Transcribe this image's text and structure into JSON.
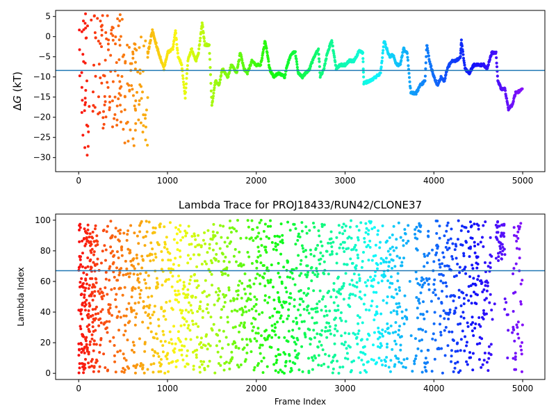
{
  "chart_data": [
    {
      "type": "scatter",
      "title": "",
      "xlabel": "",
      "ylabel": "ΔG (kT)",
      "ylabel_parts": {
        "delta": "Δ",
        "symbol": "G",
        "unit": " (kT)"
      },
      "xlim": [
        -260,
        5250
      ],
      "ylim": [
        -33.5,
        6.5
      ],
      "xticks": [
        0,
        1000,
        2000,
        3000,
        4000,
        5000
      ],
      "yticks": [
        5,
        0,
        -5,
        -10,
        -15,
        -20,
        -25,
        -30
      ],
      "xtick_labels": [
        "0",
        "1000",
        "2000",
        "3000",
        "4000",
        "5000"
      ],
      "ytick_labels": [
        "5",
        "0",
        "−5",
        "−10",
        "−15",
        "−20",
        "−25",
        "−30"
      ],
      "hline": -8.4,
      "hline_color": "#1f77b4",
      "colormap": "rainbow (red at frame 0 → violet at frame 5000)",
      "grid": false,
      "legend": "none",
      "trace_segments": [
        {
          "x_start": 0,
          "x_end": 130,
          "y_min": -30,
          "y_max": 6,
          "style": "scatter"
        },
        {
          "x_start": 130,
          "x_end": 500,
          "y_min": -24,
          "y_max": 5.5,
          "style": "scatter"
        },
        {
          "x_start": 500,
          "x_end": 780,
          "y_min": -29,
          "y_max": 0,
          "style": "scatter"
        }
      ],
      "trace_points": [
        [
          780,
          -4
        ],
        [
          830,
          1.5
        ],
        [
          900,
          -4
        ],
        [
          960,
          -8
        ],
        [
          1000,
          -4
        ],
        [
          1060,
          -3
        ],
        [
          1090,
          1.5
        ],
        [
          1120,
          -5
        ],
        [
          1160,
          -7
        ],
        [
          1200,
          -15
        ],
        [
          1230,
          -6
        ],
        [
          1270,
          -3
        ],
        [
          1320,
          -6
        ],
        [
          1350,
          -4
        ],
        [
          1390,
          3.5
        ],
        [
          1420,
          -2
        ],
        [
          1470,
          -2
        ],
        [
          1500,
          -17
        ],
        [
          1540,
          -11
        ],
        [
          1580,
          -12
        ],
        [
          1620,
          -8
        ],
        [
          1680,
          -10
        ],
        [
          1720,
          -7
        ],
        [
          1780,
          -9
        ],
        [
          1820,
          -4
        ],
        [
          1860,
          -8
        ],
        [
          1900,
          -9
        ],
        [
          1950,
          -6
        ],
        [
          2000,
          -7
        ],
        [
          2050,
          -7
        ],
        [
          2100,
          -1
        ],
        [
          2150,
          -8
        ],
        [
          2200,
          -10
        ],
        [
          2250,
          -9
        ],
        [
          2320,
          -10
        ],
        [
          2350,
          -7
        ],
        [
          2400,
          -4
        ],
        [
          2440,
          -4
        ],
        [
          2470,
          -9
        ],
        [
          2520,
          -10
        ],
        [
          2600,
          -8
        ],
        [
          2650,
          -5
        ],
        [
          2700,
          -3
        ],
        [
          2720,
          -10
        ],
        [
          2760,
          -8
        ],
        [
          2800,
          -4
        ],
        [
          2850,
          -1
        ],
        [
          2900,
          -8
        ],
        [
          2950,
          -7
        ],
        [
          3000,
          -7
        ],
        [
          3050,
          -6
        ],
        [
          3100,
          -6
        ],
        [
          3160,
          -3.5
        ],
        [
          3200,
          -4
        ],
        [
          3210,
          -11.5
        ],
        [
          3280,
          -11
        ],
        [
          3350,
          -10
        ],
        [
          3400,
          -9
        ],
        [
          3440,
          -1
        ],
        [
          3500,
          -5
        ],
        [
          3540,
          -4.5
        ],
        [
          3580,
          -7
        ],
        [
          3620,
          -7
        ],
        [
          3660,
          -3
        ],
        [
          3700,
          -4
        ],
        [
          3740,
          -14
        ],
        [
          3800,
          -14
        ],
        [
          3850,
          -12
        ],
        [
          3900,
          -11
        ],
        [
          3920,
          -2
        ],
        [
          3950,
          -6
        ],
        [
          4000,
          -10
        ],
        [
          4040,
          -12
        ],
        [
          4080,
          -10
        ],
        [
          4120,
          -11
        ],
        [
          4150,
          -8
        ],
        [
          4200,
          -6
        ],
        [
          4250,
          -6
        ],
        [
          4300,
          -5
        ],
        [
          4310,
          -1
        ],
        [
          4350,
          -8
        ],
        [
          4400,
          -9
        ],
        [
          4450,
          -7
        ],
        [
          4500,
          -7
        ],
        [
          4560,
          -7
        ],
        [
          4600,
          -8
        ],
        [
          4650,
          -4
        ],
        [
          4700,
          -4
        ],
        [
          4720,
          -11
        ],
        [
          4760,
          -13
        ],
        [
          4800,
          -13
        ],
        [
          4840,
          -18
        ],
        [
          4880,
          -17
        ],
        [
          4920,
          -14
        ],
        [
          4960,
          -13.5
        ],
        [
          5000,
          -13
        ]
      ]
    },
    {
      "type": "scatter",
      "title": "Lambda Trace for PROJ18433/RUN42/CLONE37",
      "xlabel": "Frame Index",
      "ylabel": "Lambda Index",
      "xlim": [
        -260,
        5250
      ],
      "ylim": [
        -4,
        104
      ],
      "xticks": [
        0,
        1000,
        2000,
        3000,
        4000,
        5000
      ],
      "yticks": [
        0,
        20,
        40,
        60,
        80,
        100
      ],
      "xtick_labels": [
        "0",
        "1000",
        "2000",
        "3000",
        "4000",
        "5000"
      ],
      "ytick_labels": [
        "0",
        "20",
        "40",
        "60",
        "80",
        "100"
      ],
      "hline": 67,
      "hline_color": "#1f77b4",
      "colormap": "rainbow (red at frame 0 → violet at frame 5000)",
      "grid": false,
      "legend": "none",
      "x_range": [
        0,
        5000
      ],
      "y_range": [
        0,
        100
      ],
      "density_note": "continuous scatter; dense vertical streaks spanning lambda 0–100",
      "streaks": [
        {
          "x": 3820,
          "y_min": 0,
          "y_max": 100
        },
        {
          "x": 4300,
          "y_min": 0,
          "y_max": 100
        },
        {
          "x": 4780,
          "y_min": 75,
          "y_max": 100
        }
      ]
    }
  ]
}
